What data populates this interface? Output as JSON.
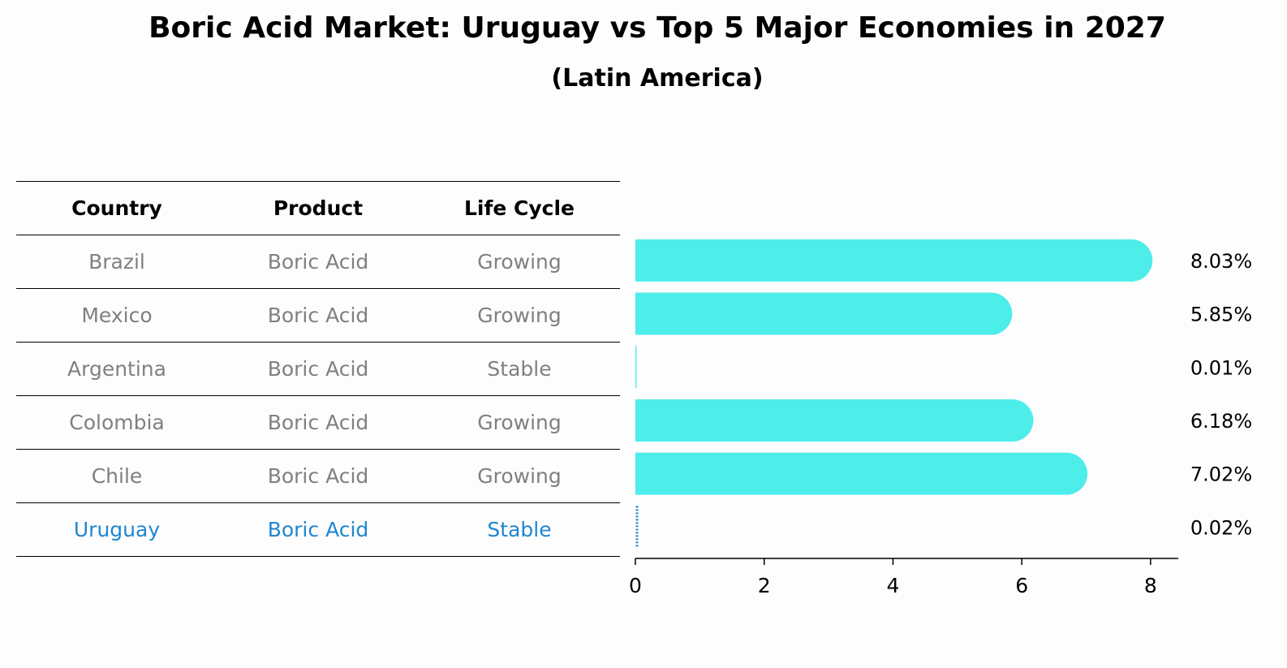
{
  "title": "Boric Acid Market: Uruguay vs Top 5 Major Economies in 2027",
  "subtitle": "(Latin America)",
  "table": {
    "headers": [
      "Country",
      "Product",
      "Life Cycle"
    ],
    "rows": [
      {
        "country": "Brazil",
        "product": "Boric Acid",
        "life_cycle": "Growing"
      },
      {
        "country": "Mexico",
        "product": "Boric Acid",
        "life_cycle": "Growing"
      },
      {
        "country": "Argentina",
        "product": "Boric Acid",
        "life_cycle": "Stable"
      },
      {
        "country": "Colombia",
        "product": "Boric Acid",
        "life_cycle": "Growing"
      },
      {
        "country": "Chile",
        "product": "Boric Acid",
        "life_cycle": "Growing"
      },
      {
        "country": "Uruguay",
        "product": "Boric Acid",
        "life_cycle": "Stable"
      }
    ]
  },
  "chart_data": {
    "type": "bar",
    "orientation": "horizontal",
    "categories": [
      "Brazil",
      "Mexico",
      "Argentina",
      "Colombia",
      "Chile",
      "Uruguay"
    ],
    "values": [
      8.03,
      5.85,
      0.01,
      6.18,
      7.02,
      0.02
    ],
    "value_labels": [
      "8.03%",
      "5.85%",
      "0.01%",
      "6.18%",
      "7.02%",
      "0.02%"
    ],
    "xlim": [
      0,
      8.43
    ],
    "xticks": [
      0,
      2,
      4,
      6,
      8
    ],
    "xlabel": "",
    "ylabel": "",
    "grid": false,
    "highlight_category": "Uruguay",
    "colors": {
      "bar": "#4dedea",
      "highlight": "#1f86d1",
      "highlight_text": "#1f86d1",
      "muted_text": "#808080"
    }
  }
}
